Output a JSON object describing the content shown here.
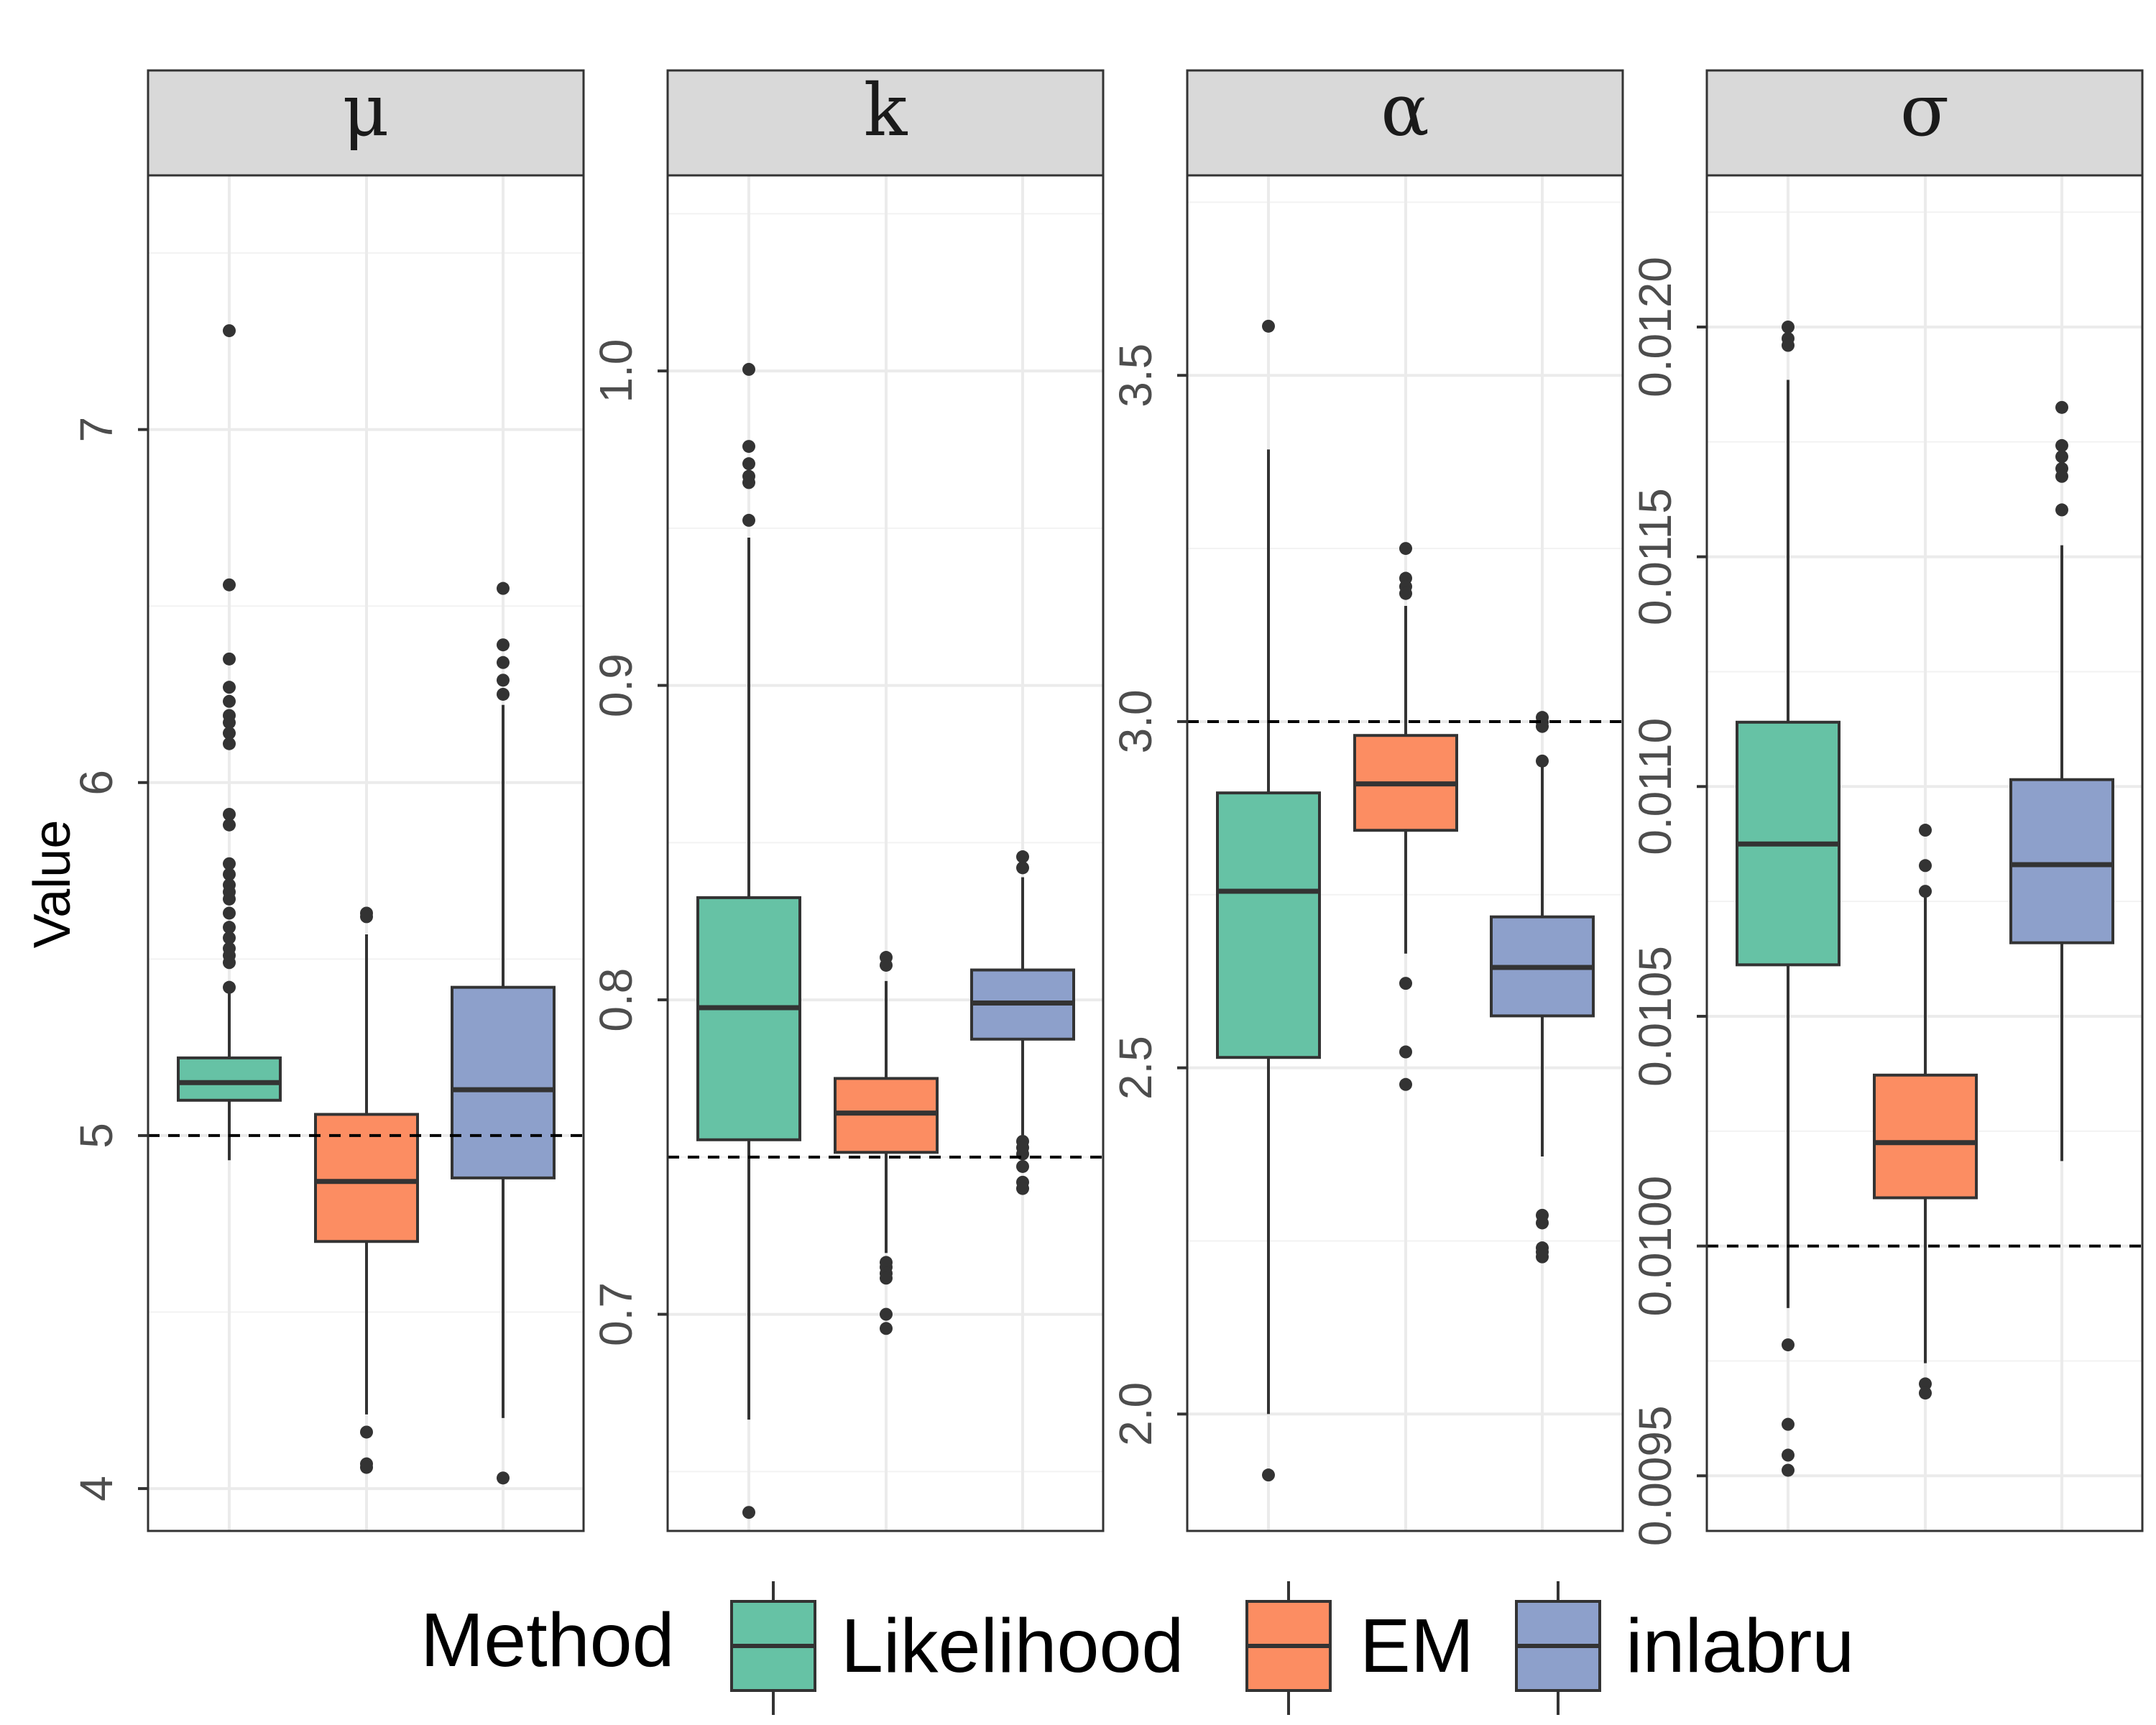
{
  "chart_data": {
    "type": "box",
    "ylabel": "Value",
    "legend": {
      "title": "Method",
      "position": "bottom",
      "entries": [
        {
          "label": "Likelihood",
          "color": "#66C2A5"
        },
        {
          "label": "EM",
          "color": "#FC8D62"
        },
        {
          "label": "inlabru",
          "color": "#8DA0CB"
        }
      ]
    },
    "panels": [
      {
        "label": "μ",
        "true_value": 5,
        "ylim": [
          3.88,
          7.72
        ],
        "ticks": [
          4,
          5,
          6,
          7
        ],
        "tick_labels": [
          "4",
          "5",
          "6",
          "7"
        ],
        "methods": [
          {
            "name": "Likelihood",
            "q1": 5.1,
            "median": 5.15,
            "q3": 5.22,
            "whisker_low": 4.93,
            "whisker_high": 5.41,
            "outliers": [
              7.28,
              6.56,
              6.35,
              6.27,
              6.23,
              6.19,
              6.17,
              6.14,
              6.11,
              5.91,
              5.88,
              5.77,
              5.74,
              5.71,
              5.69,
              5.67,
              5.63,
              5.59,
              5.56,
              5.53,
              5.51,
              5.49,
              5.42
            ]
          },
          {
            "name": "EM",
            "q1": 4.7,
            "median": 4.87,
            "q3": 5.06,
            "whisker_low": 4.21,
            "whisker_high": 5.57,
            "outliers": [
              5.63,
              5.62,
              4.16,
              4.07,
              4.06
            ]
          },
          {
            "name": "inlabru",
            "q1": 4.88,
            "median": 5.13,
            "q3": 5.42,
            "whisker_low": 4.2,
            "whisker_high": 6.22,
            "outliers": [
              6.55,
              6.39,
              6.34,
              6.29,
              6.25,
              4.03
            ]
          }
        ]
      },
      {
        "label": "k",
        "true_value": 0.75,
        "ylim": [
          0.6311,
          1.0622
        ],
        "ticks": [
          0.7,
          0.8,
          0.9,
          1.0
        ],
        "tick_labels": [
          "0.7",
          "0.8",
          "0.9",
          "1.0"
        ],
        "methods": [
          {
            "name": "Likelihood",
            "q1": 0.7555,
            "median": 0.7975,
            "q3": 0.8325,
            "whisker_low": 0.6665,
            "whisker_high": 0.947,
            "outliers": [
              1.0005,
              0.976,
              0.9705,
              0.9665,
              0.9645,
              0.9525,
              0.637
            ]
          },
          {
            "name": "EM",
            "q1": 0.7515,
            "median": 0.764,
            "q3": 0.775,
            "whisker_low": 0.7195,
            "whisker_high": 0.806,
            "outliers": [
              0.8135,
              0.811,
              0.7165,
              0.715,
              0.713,
              0.7115,
              0.7,
              0.6955
            ]
          },
          {
            "name": "inlabru",
            "q1": 0.7875,
            "median": 0.799,
            "q3": 0.8095,
            "whisker_low": 0.757,
            "whisker_high": 0.839,
            "outliers": [
              0.8455,
              0.842,
              0.755,
              0.753,
              0.751,
              0.747,
              0.742,
              0.74
            ]
          }
        ]
      },
      {
        "label": "α",
        "true_value": 3.0,
        "ylim": [
          1.8312,
          3.7888
        ],
        "ticks": [
          2.0,
          2.5,
          3.0,
          3.5
        ],
        "tick_labels": [
          "2.0",
          "2.5",
          "3.0",
          "3.5"
        ],
        "methods": [
          {
            "name": "Likelihood",
            "q1": 2.515,
            "median": 2.755,
            "q3": 2.897,
            "whisker_low": 2.0,
            "whisker_high": 3.393,
            "outliers": [
              3.571,
              1.912
            ]
          },
          {
            "name": "EM",
            "q1": 2.843,
            "median": 2.91,
            "q3": 2.98,
            "whisker_low": 2.665,
            "whisker_high": 3.167,
            "outliers": [
              3.25,
              3.207,
              3.195,
              3.185,
              2.622,
              2.523,
              2.476
            ]
          },
          {
            "name": "inlabru",
            "q1": 2.575,
            "median": 2.645,
            "q3": 2.718,
            "whisker_low": 2.372,
            "whisker_high": 2.935,
            "outliers": [
              3.006,
              2.999,
              2.993,
              2.943,
              2.287,
              2.276,
              2.24,
              2.234,
              2.227
            ]
          }
        ]
      },
      {
        "label": "σ",
        "true_value": 0.01,
        "ylim": [
          0.00938,
          0.01233
        ],
        "ticks": [
          0.0095,
          0.01,
          0.0105,
          0.011,
          0.0115,
          0.012
        ],
        "tick_labels": [
          "0.0095",
          "0.0100",
          "0.0105",
          "0.0110",
          "0.0115",
          "0.0120"
        ],
        "methods": [
          {
            "name": "Likelihood",
            "q1": 0.010612,
            "median": 0.010875,
            "q3": 0.01114,
            "whisker_low": 0.009865,
            "whisker_high": 0.011885,
            "outliers": [
              0.012,
              0.011975,
              0.01196,
              0.009785,
              0.009612,
              0.009545,
              0.009512
            ]
          },
          {
            "name": "EM",
            "q1": 0.010105,
            "median": 0.010225,
            "q3": 0.010372,
            "whisker_low": 0.009745,
            "whisker_high": 0.010762,
            "outliers": [
              0.010905,
              0.010828,
              0.010772,
              0.0097,
              0.00968
            ]
          },
          {
            "name": "inlabru",
            "q1": 0.01066,
            "median": 0.01083,
            "q3": 0.011015,
            "whisker_low": 0.010185,
            "whisker_high": 0.011525,
            "outliers": [
              0.011825,
              0.011742,
              0.011718,
              0.011692,
              0.011675,
              0.011602
            ]
          }
        ]
      }
    ]
  }
}
